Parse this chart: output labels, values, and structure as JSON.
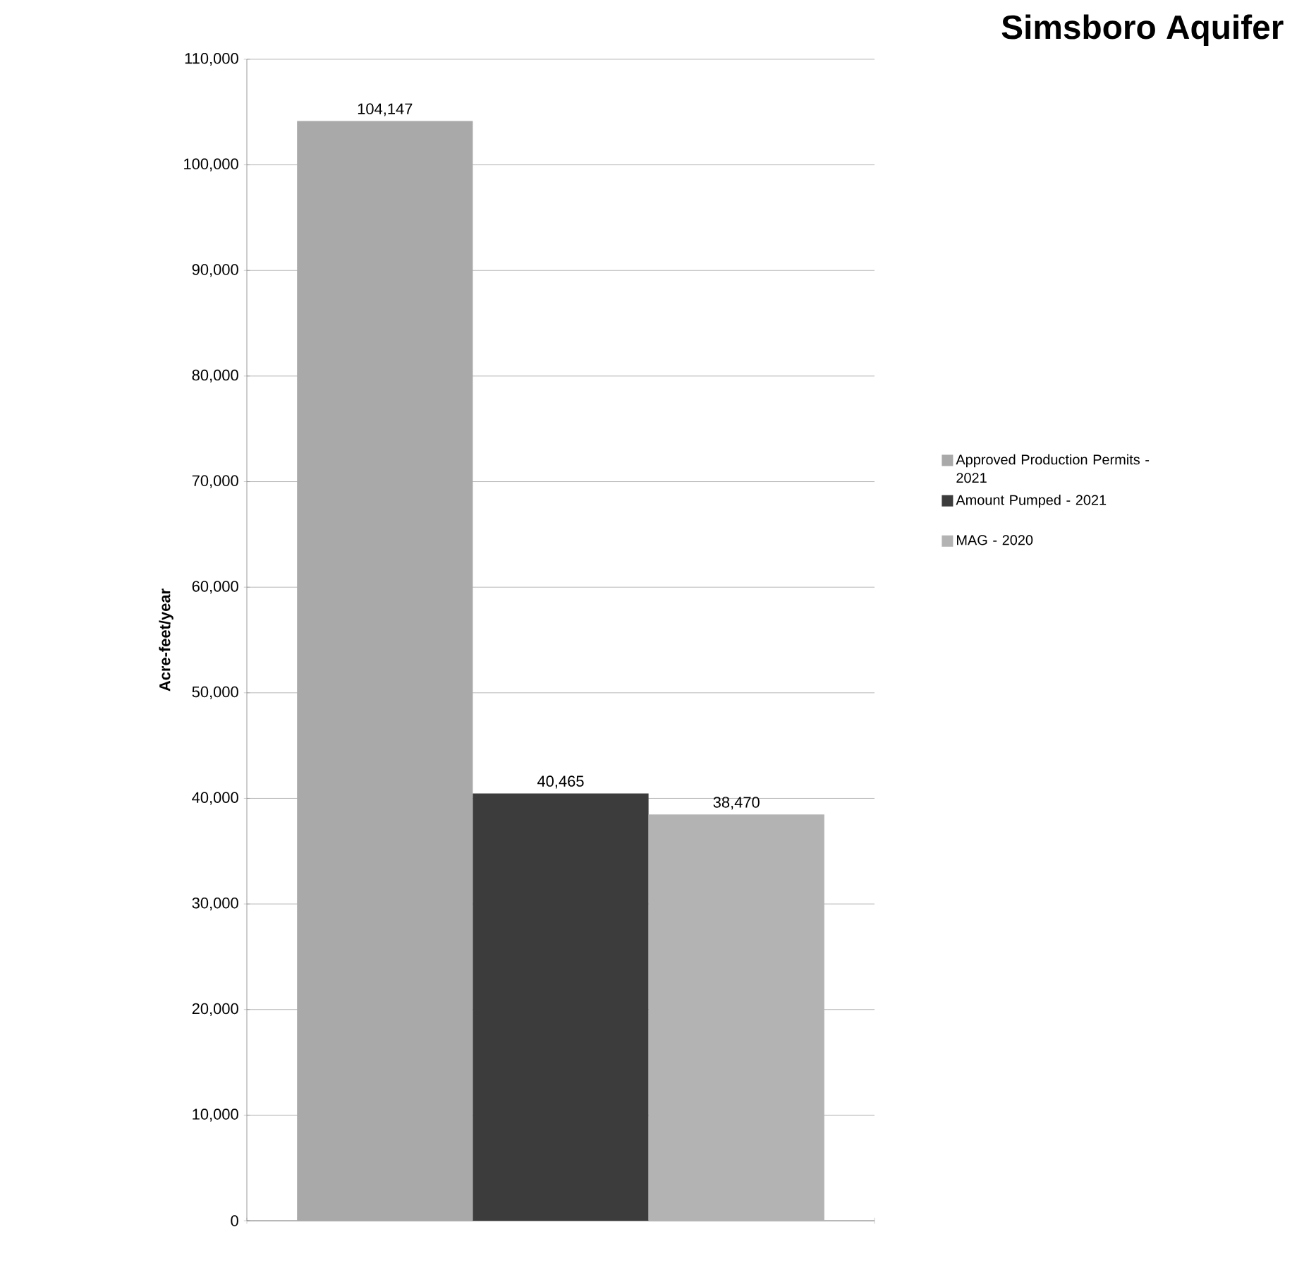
{
  "chart_data": {
    "type": "bar",
    "title": "Simsboro Aquifer",
    "ylabel": "Acre-feet/year",
    "categories": [
      null
    ],
    "series": [
      {
        "name": "Approved Production Permits - 2021",
        "color": "#a9a9a9",
        "values": [
          104147
        ],
        "value_labels": [
          "104,147"
        ]
      },
      {
        "name": "Amount Pumped - 2021",
        "color": "#3c3c3c",
        "values": [
          40465
        ],
        "value_labels": [
          "40,465"
        ]
      },
      {
        "name": "MAG - 2020",
        "color": "#b3b3b3",
        "values": [
          38470
        ],
        "value_labels": [
          "38,470"
        ]
      }
    ],
    "ylim": [
      0,
      110000
    ],
    "yticks": [
      {
        "value": 0,
        "label": "0"
      },
      {
        "value": 10000,
        "label": "10,000"
      },
      {
        "value": 20000,
        "label": "20,000"
      },
      {
        "value": 30000,
        "label": "30,000"
      },
      {
        "value": 40000,
        "label": "40,000"
      },
      {
        "value": 50000,
        "label": "50,000"
      },
      {
        "value": 60000,
        "label": "60,000"
      },
      {
        "value": 70000,
        "label": "70,000"
      },
      {
        "value": 80000,
        "label": "80,000"
      },
      {
        "value": 90000,
        "label": "90,000"
      },
      {
        "value": 100000,
        "label": "100,000"
      },
      {
        "value": 110000,
        "label": "110,000"
      }
    ],
    "grid": "y",
    "legend": "right"
  }
}
